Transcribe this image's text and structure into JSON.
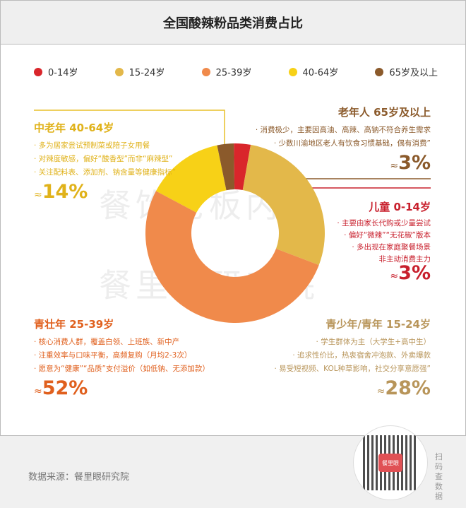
{
  "title": "全国酸辣粉品类消费占比",
  "watermark": {
    "line1": "餐饮老板内参",
    "line2": "餐里眼研究院"
  },
  "legend": [
    {
      "label": "0-14岁",
      "color": "#d9262b"
    },
    {
      "label": "15-24岁",
      "color": "#e3b84a"
    },
    {
      "label": "25-39岁",
      "color": "#f08a4b"
    },
    {
      "label": "40-64岁",
      "color": "#f7d117"
    },
    {
      "label": "65岁及以上",
      "color": "#8b5a2b"
    }
  ],
  "segments": {
    "middle": {
      "title": "中老年 40-64岁",
      "points": [
        "· 多为居家尝试预制菜或陪子女用餐",
        "· 对辣度敏感，偏好“酸香型”而非“麻辣型”",
        "· 关注配料表、添加剂、钠含量等健康指标”"
      ],
      "approx": "≈",
      "pct": "14%",
      "color": "#e0b21a"
    },
    "elder": {
      "title": "老年人 65岁及以上",
      "points": [
        "· 消费极少，主要因高油、高辣、高钠不符合养生需求",
        "· 少数川渝地区老人有饮食习惯基础，偶有消费”"
      ],
      "approx": "≈",
      "pct": "3%",
      "color": "#8b5a2b"
    },
    "child": {
      "title": "儿童 0-14岁",
      "points": [
        "· 主要由家长代购或少量尝试",
        "· 偏好“微辣”“无花椒”版本",
        "· 多出现在家庭聚餐场景",
        "非主动消费主力"
      ],
      "approx": "≈",
      "pct": "3%",
      "color": "#c8202d"
    },
    "adult": {
      "title": "青壮年 25-39岁",
      "points": [
        "· 核心消费人群，覆盖白领、上班族、新中产",
        "· 注重效率与口味平衡，高频复购（月均2-3次）",
        "· 愿意为“健康”“品质”支付溢价（如低钠、无添加款）"
      ],
      "approx": "≈",
      "pct": "52%",
      "color": "#e0601e"
    },
    "youth": {
      "title": "青少年/青年 15-24岁",
      "points": [
        "· 学生群体为主（大学生+高中生）",
        "· 追求性价比，热衷宿舍冲泡款、外卖爆款",
        "· 易受短视频、KOL种草影响，社交分享意愿强”"
      ],
      "approx": "≈",
      "pct": "28%",
      "color": "#b8955a"
    }
  },
  "chart_data": {
    "type": "pie",
    "donut": true,
    "categories": [
      "40-64岁",
      "65岁及以上",
      "0-14岁",
      "15-24岁",
      "25-39岁"
    ],
    "values": [
      14,
      3,
      3,
      28,
      52
    ],
    "colors": [
      "#f7d117",
      "#8b5a2b",
      "#d9262b",
      "#e3b84a",
      "#f08a4b"
    ],
    "title": "全国酸辣粉品类消费占比"
  },
  "footer": {
    "source": "数据来源：餐里眼研究院",
    "qr_logo": "餐里眼",
    "scan": "扫码查数据"
  }
}
